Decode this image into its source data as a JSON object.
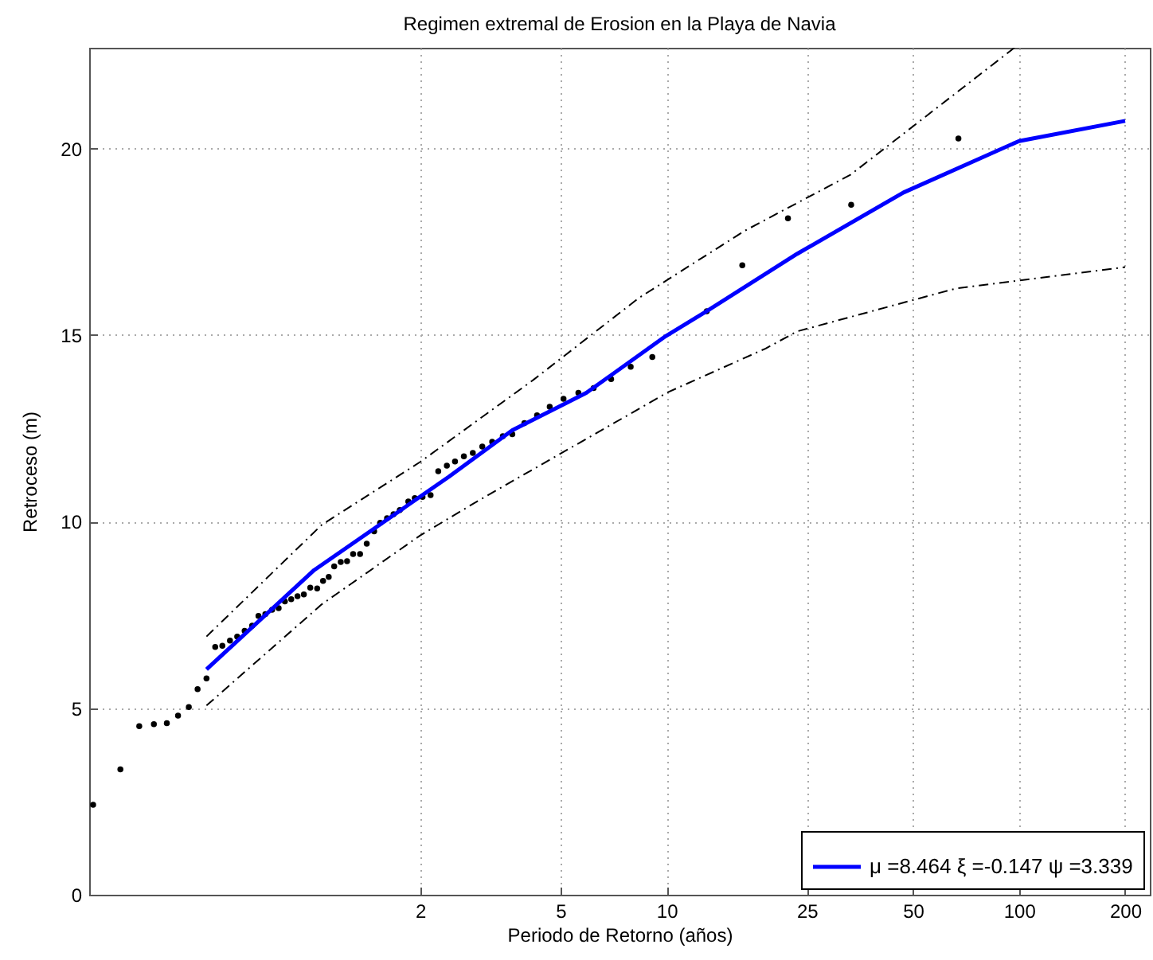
{
  "chart_data": {
    "type": "line",
    "title": "Regimen extremal de Erosion en la Playa de Navia",
    "xlabel": "Periodo de Retorno (años)",
    "ylabel": "Retroceso (m)",
    "log": "x",
    "xlim": [
      0.23,
      235
    ],
    "ylim": [
      0,
      22.7
    ],
    "xticks": [
      2,
      5,
      10,
      25,
      50,
      100,
      200
    ],
    "yticks": [
      0,
      5,
      10,
      15,
      20
    ],
    "grid": true,
    "legend": "bottom right",
    "series": [
      {
        "type": "scatter",
        "color": "#000000",
        "marker": "circle",
        "x": [
          0.236,
          0.282,
          0.319,
          0.351,
          0.382,
          0.411,
          0.441,
          0.467,
          0.495,
          0.524,
          0.549,
          0.577,
          0.605,
          0.635,
          0.667,
          0.695,
          0.727,
          0.76,
          0.793,
          0.826,
          0.861,
          0.897,
          0.935,
          0.975,
          1.02,
          1.06,
          1.1,
          1.14,
          1.19,
          1.24,
          1.29,
          1.35,
          1.41,
          1.48,
          1.54,
          1.61,
          1.68,
          1.75,
          1.85,
          1.93,
          2.03,
          2.14,
          2.25,
          2.38,
          2.51,
          2.66,
          2.82,
          3.0,
          3.2,
          3.43,
          3.65,
          3.95,
          4.29,
          4.66,
          5.1,
          5.62,
          6.21,
          6.96,
          7.91,
          9.11,
          13.0,
          16.4,
          22.1,
          33.4,
          67.3
        ],
        "values": [
          2.41,
          3.36,
          4.52,
          4.57,
          4.6,
          4.8,
          5.03,
          5.51,
          5.8,
          6.64,
          6.67,
          6.81,
          6.92,
          7.07,
          7.21,
          7.47,
          7.52,
          7.64,
          7.68,
          7.86,
          7.92,
          8.0,
          8.05,
          8.23,
          8.21,
          8.41,
          8.52,
          8.8,
          8.92,
          8.94,
          9.13,
          9.13,
          9.41,
          9.74,
          9.97,
          10.09,
          10.2,
          10.31,
          10.54,
          10.63,
          10.66,
          10.71,
          11.35,
          11.5,
          11.61,
          11.75,
          11.84,
          12.01,
          12.14,
          12.29,
          12.34,
          12.64,
          12.85,
          13.08,
          13.29,
          13.45,
          13.58,
          13.82,
          14.15,
          14.41,
          15.64,
          16.87,
          18.13,
          18.49,
          20.27
        ]
      },
      {
        "color": "#000000",
        "line_style": "dashed",
        "marker": "none",
        "x": [
          0.495,
          1.05,
          2,
          4.19,
          8.36,
          16.7,
          33.3,
          97
        ],
        "values": [
          6.92,
          9.91,
          11.6,
          13.8,
          16.0,
          17.8,
          19.3,
          22.7
        ]
      },
      {
        "color": "#000000",
        "line_style": "dashed",
        "marker": "none",
        "x": [
          0.495,
          1.05,
          2,
          2.97,
          10.1,
          19.1,
          23.5,
          66.3,
          200
        ],
        "values": [
          5.07,
          7.78,
          9.63,
          10.6,
          13.47,
          14.64,
          15.1,
          16.25,
          16.82
        ]
      },
      {
        "name": "μ =8.464 ξ =-0.147 ψ =3.339",
        "color": "#0000ff",
        "line_style": "solid",
        "marker": "none",
        "x": [
          0.495,
          1.0,
          2.41,
          3.65,
          5.92,
          9.94,
          13.0,
          23.5,
          47,
          100,
          200
        ],
        "values": [
          6.04,
          8.7,
          11.2,
          12.45,
          13.45,
          14.97,
          15.64,
          17.18,
          18.82,
          20.2,
          20.74
        ]
      }
    ]
  }
}
